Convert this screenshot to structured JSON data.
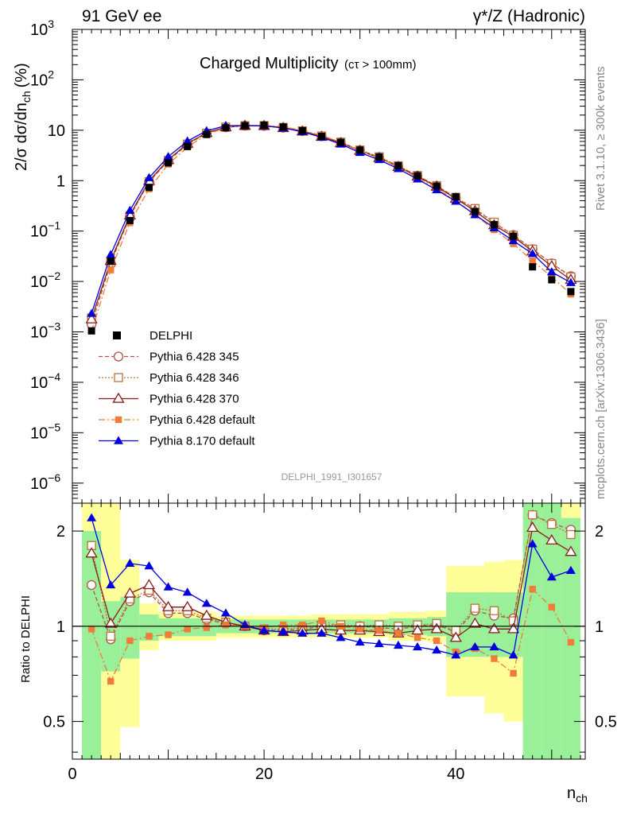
{
  "header": {
    "energy_label": "91 GeV ee",
    "process_label": "γ*/Z (Hadronic)"
  },
  "side_labels": {
    "rivet": "Rivet 3.1.10, ≥ 300k events",
    "mcplots": "mcplots.cern.ch [arXiv:1306.3436]"
  },
  "analysis_id": "DELPHI_1991_I301657",
  "chart_data": {
    "type": "scatter",
    "title": "Charged Multiplicity",
    "title_suffix": "(cτ > 100mm)",
    "ylabel": "2/σ dσ/dn_ch (%)",
    "ratio_ylabel": "Ratio to DELPHI",
    "xlabel": "n_ch",
    "xlim": [
      0,
      53.5
    ],
    "ylim": [
      4e-07,
      1000
    ],
    "yscale": "log",
    "ratio_ylim": [
      0.38,
      2.45
    ],
    "x_ticks": [
      0,
      20,
      40
    ],
    "y_ticks": [
      {
        "value": 1e-06,
        "label": "10",
        "sup": "−6"
      },
      {
        "value": 1e-05,
        "label": "10",
        "sup": "−5"
      },
      {
        "value": 0.0001,
        "label": "10",
        "sup": "−4"
      },
      {
        "value": 0.001,
        "label": "10",
        "sup": "−3"
      },
      {
        "value": 0.01,
        "label": "10",
        "sup": "−2"
      },
      {
        "value": 0.1,
        "label": "10",
        "sup": "−1"
      },
      {
        "value": 1,
        "label": "1",
        "sup": ""
      },
      {
        "value": 10,
        "label": "10",
        "sup": ""
      },
      {
        "value": 100,
        "label": "10",
        "sup": "2"
      },
      {
        "value": 1000,
        "label": "10",
        "sup": "3"
      }
    ],
    "ratio_ticks": [
      {
        "value": 0.5,
        "label": "0.5"
      },
      {
        "value": 1,
        "label": "1"
      },
      {
        "value": 2,
        "label": "2"
      }
    ],
    "x": [
      2,
      4,
      6,
      8,
      10,
      12,
      14,
      16,
      18,
      20,
      22,
      24,
      26,
      28,
      30,
      32,
      34,
      36,
      38,
      40,
      42,
      44,
      46,
      48,
      50,
      52
    ],
    "data_values": [
      0.00105,
      0.0252,
      0.162,
      0.735,
      2.25,
      4.75,
      8.25,
      11.2,
      12.3,
      12.6,
      11.6,
      9.8,
      7.6,
      5.75,
      4.05,
      2.95,
      1.98,
      1.25,
      0.78,
      0.48,
      0.245,
      0.134,
      0.079,
      0.0195,
      0.0108,
      0.0063
    ],
    "legend_data": "DELPHI",
    "series": [
      {
        "name": "Pythia 6.428 345",
        "color": "#b5504d",
        "marker": "circle-open",
        "dash": "5,3",
        "ratio": [
          1.35,
          0.91,
          1.2,
          1.28,
          1.1,
          1.1,
          1.05,
          1.02,
          1.0,
          0.97,
          0.97,
          0.98,
          1.0,
          1.0,
          1.0,
          0.99,
          0.98,
          1.0,
          1.01,
          0.96,
          1.12,
          1.08,
          1.06,
          2.25,
          2.12,
          2.02
        ]
      },
      {
        "name": "Pythia 6.428 346",
        "color": "#b8733a",
        "marker": "square-open",
        "dash": "2,2",
        "ratio": [
          1.8,
          0.93,
          1.22,
          1.3,
          1.12,
          1.12,
          1.06,
          1.03,
          1.0,
          0.98,
          0.98,
          0.99,
          1.01,
          1.01,
          1.0,
          1.01,
          1.0,
          1.01,
          1.02,
          0.97,
          1.14,
          1.12,
          1.04,
          2.25,
          2.1,
          1.95
        ]
      },
      {
        "name": "Pythia 6.428 370",
        "color": "#8b1a1a",
        "marker": "triangle-open",
        "dash": "",
        "ratio": [
          1.7,
          1.02,
          1.27,
          1.35,
          1.15,
          1.15,
          1.08,
          1.03,
          1.0,
          0.97,
          0.96,
          0.97,
          0.98,
          0.97,
          0.97,
          0.96,
          0.95,
          0.97,
          0.98,
          0.92,
          1.02,
          0.98,
          0.98,
          2.05,
          1.87,
          1.72
        ]
      },
      {
        "name": "Pythia 6.428 default",
        "color": "#f07c3a",
        "marker": "square-filled",
        "dash": "8,3,2,3",
        "ratio": [
          0.98,
          0.67,
          0.9,
          0.93,
          0.94,
          0.98,
          0.99,
          1.01,
          1.0,
          0.99,
          1.01,
          1.01,
          1.04,
          1.0,
          0.98,
          0.97,
          0.95,
          0.92,
          0.9,
          0.83,
          0.85,
          0.79,
          0.71,
          1.31,
          1.15,
          0.89
        ]
      },
      {
        "name": "Pythia 8.170 default",
        "color": "#0000dd",
        "marker": "triangle-filled",
        "dash": "",
        "ratio": [
          2.2,
          1.35,
          1.58,
          1.55,
          1.33,
          1.28,
          1.18,
          1.1,
          1.01,
          0.97,
          0.96,
          0.95,
          0.95,
          0.92,
          0.89,
          0.88,
          0.87,
          0.86,
          0.84,
          0.81,
          0.86,
          0.86,
          0.81,
          1.82,
          1.43,
          1.5
        ]
      }
    ],
    "uncertainty_bands": [
      {
        "x0": 1,
        "x1": 3,
        "green": [
          0.38,
          2.0
        ],
        "yellow": [
          0.38,
          2.45
        ]
      },
      {
        "x0": 3,
        "x1": 5,
        "green": [
          0.72,
          1.2
        ],
        "yellow": [
          0.38,
          2.45
        ]
      },
      {
        "x0": 5,
        "x1": 7,
        "green": [
          0.79,
          1.24
        ],
        "yellow": [
          0.48,
          1.62
        ]
      },
      {
        "x0": 7,
        "x1": 9,
        "green": [
          0.9,
          1.09
        ],
        "yellow": [
          0.84,
          1.18
        ]
      },
      {
        "x0": 9,
        "x1": 15,
        "green": [
          0.93,
          1.06
        ],
        "yellow": [
          0.9,
          1.11
        ]
      },
      {
        "x0": 15,
        "x1": 25,
        "green": [
          0.95,
          1.05
        ],
        "yellow": [
          0.92,
          1.08
        ]
      },
      {
        "x0": 25,
        "x1": 33,
        "green": [
          0.95,
          1.05
        ],
        "yellow": [
          0.92,
          1.09
        ]
      },
      {
        "x0": 33,
        "x1": 37,
        "green": [
          0.94,
          1.06
        ],
        "yellow": [
          0.9,
          1.11
        ]
      },
      {
        "x0": 37,
        "x1": 39,
        "green": [
          0.93,
          1.07
        ],
        "yellow": [
          0.89,
          1.12
        ]
      },
      {
        "x0": 39,
        "x1": 43,
        "green": [
          0.8,
          1.28
        ],
        "yellow": [
          0.6,
          1.55
        ]
      },
      {
        "x0": 43,
        "x1": 45,
        "green": [
          0.8,
          1.28
        ],
        "yellow": [
          0.53,
          1.6
        ]
      },
      {
        "x0": 45,
        "x1": 47,
        "green": [
          0.8,
          1.28
        ],
        "yellow": [
          0.5,
          1.62
        ]
      },
      {
        "x0": 47,
        "x1": 49,
        "green": [
          0.38,
          2.45
        ],
        "yellow": [
          0.38,
          2.45
        ]
      },
      {
        "x0": 49,
        "x1": 51,
        "green": [
          0.38,
          2.45
        ],
        "yellow": [
          0.38,
          2.45
        ]
      },
      {
        "x0": 51,
        "x1": 53,
        "green": [
          0.38,
          2.2
        ],
        "yellow": [
          0.38,
          2.45
        ]
      }
    ]
  }
}
